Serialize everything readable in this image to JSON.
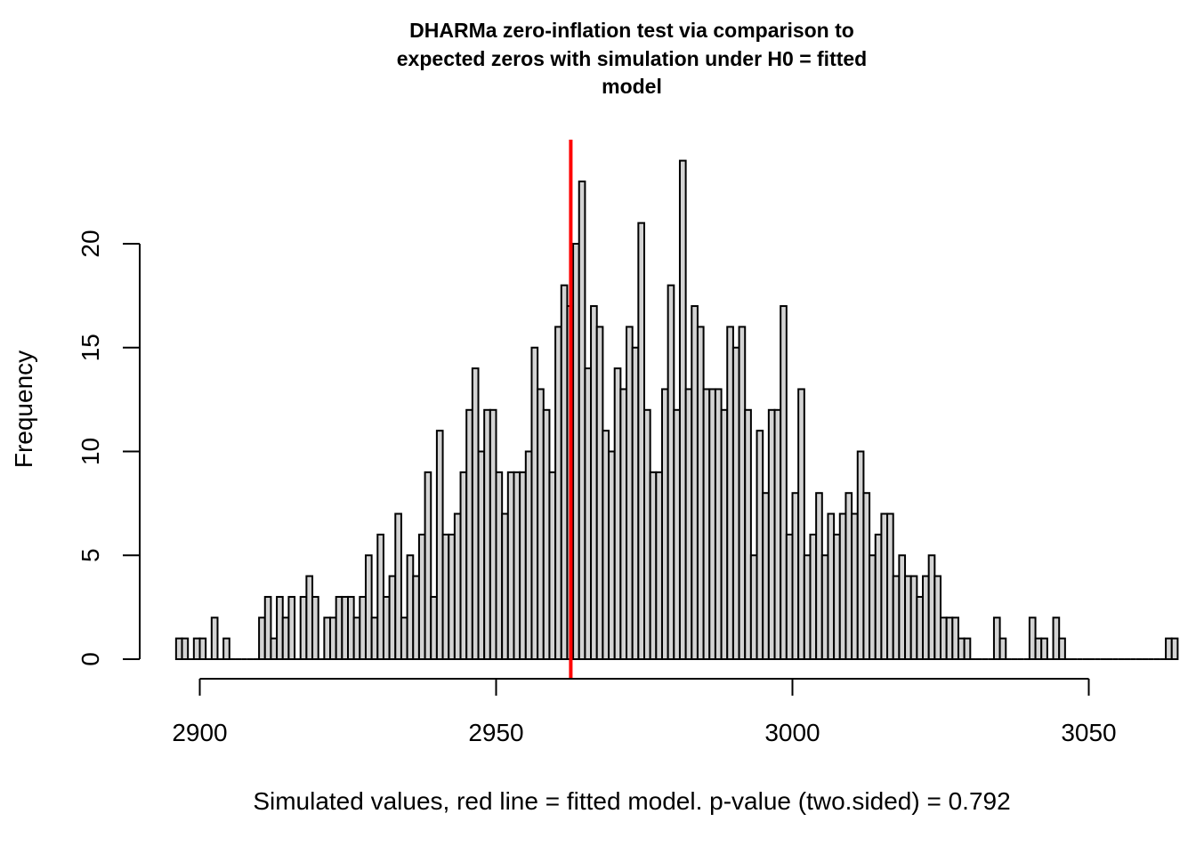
{
  "chart_data": {
    "type": "bar",
    "title_lines": [
      "DHARMa zero-inflation test via comparison to",
      "expected zeros with simulation under H0 = fitted",
      "model"
    ],
    "xlabel": "Simulated values, red line = fitted model. p-value (two.sided) = 0.792",
    "ylabel": "Frequency",
    "xlim": [
      2896,
      3050
    ],
    "ylim": [
      0,
      25
    ],
    "x_ticks": [
      2900,
      2950,
      3000,
      3050
    ],
    "y_ticks": [
      0,
      5,
      10,
      15,
      20
    ],
    "bin_width": 1,
    "bin_start": 2896,
    "values": [
      1,
      1,
      0,
      1,
      1,
      0,
      2,
      0,
      1,
      0,
      0,
      0,
      0,
      0,
      2,
      3,
      1,
      3,
      2,
      3,
      0,
      3,
      4,
      3,
      0,
      2,
      2,
      3,
      3,
      3,
      2,
      3,
      5,
      2,
      6,
      3,
      4,
      7,
      2,
      5,
      4,
      6,
      9,
      3,
      11,
      6,
      6,
      7,
      9,
      12,
      14,
      10,
      12,
      12,
      9,
      7,
      9,
      9,
      9,
      10,
      15,
      13,
      12,
      9,
      16,
      18,
      17,
      20,
      23,
      14,
      17,
      16,
      11,
      10,
      14,
      13,
      16,
      15,
      21,
      12,
      9,
      9,
      13,
      18,
      12,
      24,
      13,
      17,
      16,
      13,
      13,
      13,
      12,
      16,
      15,
      16,
      12,
      5,
      11,
      8,
      12,
      12,
      17,
      6,
      8,
      13,
      5,
      6,
      8,
      5,
      7,
      6,
      7,
      8,
      7,
      10,
      8,
      5,
      6,
      7,
      7,
      4,
      5,
      4,
      4,
      3,
      4,
      5,
      4,
      2,
      2,
      2,
      1,
      1,
      0,
      0,
      0,
      0,
      2,
      1,
      0,
      0,
      0,
      0,
      2,
      1,
      1,
      0,
      2,
      1,
      0,
      0,
      0,
      0,
      0,
      0,
      0,
      0,
      0,
      0,
      0,
      0,
      0,
      0,
      0,
      0,
      0,
      1,
      1
    ],
    "reference_line": {
      "x": 2962.6,
      "color": "#ff0000"
    },
    "bar_fill": "#d3d3d3",
    "grid": false
  }
}
